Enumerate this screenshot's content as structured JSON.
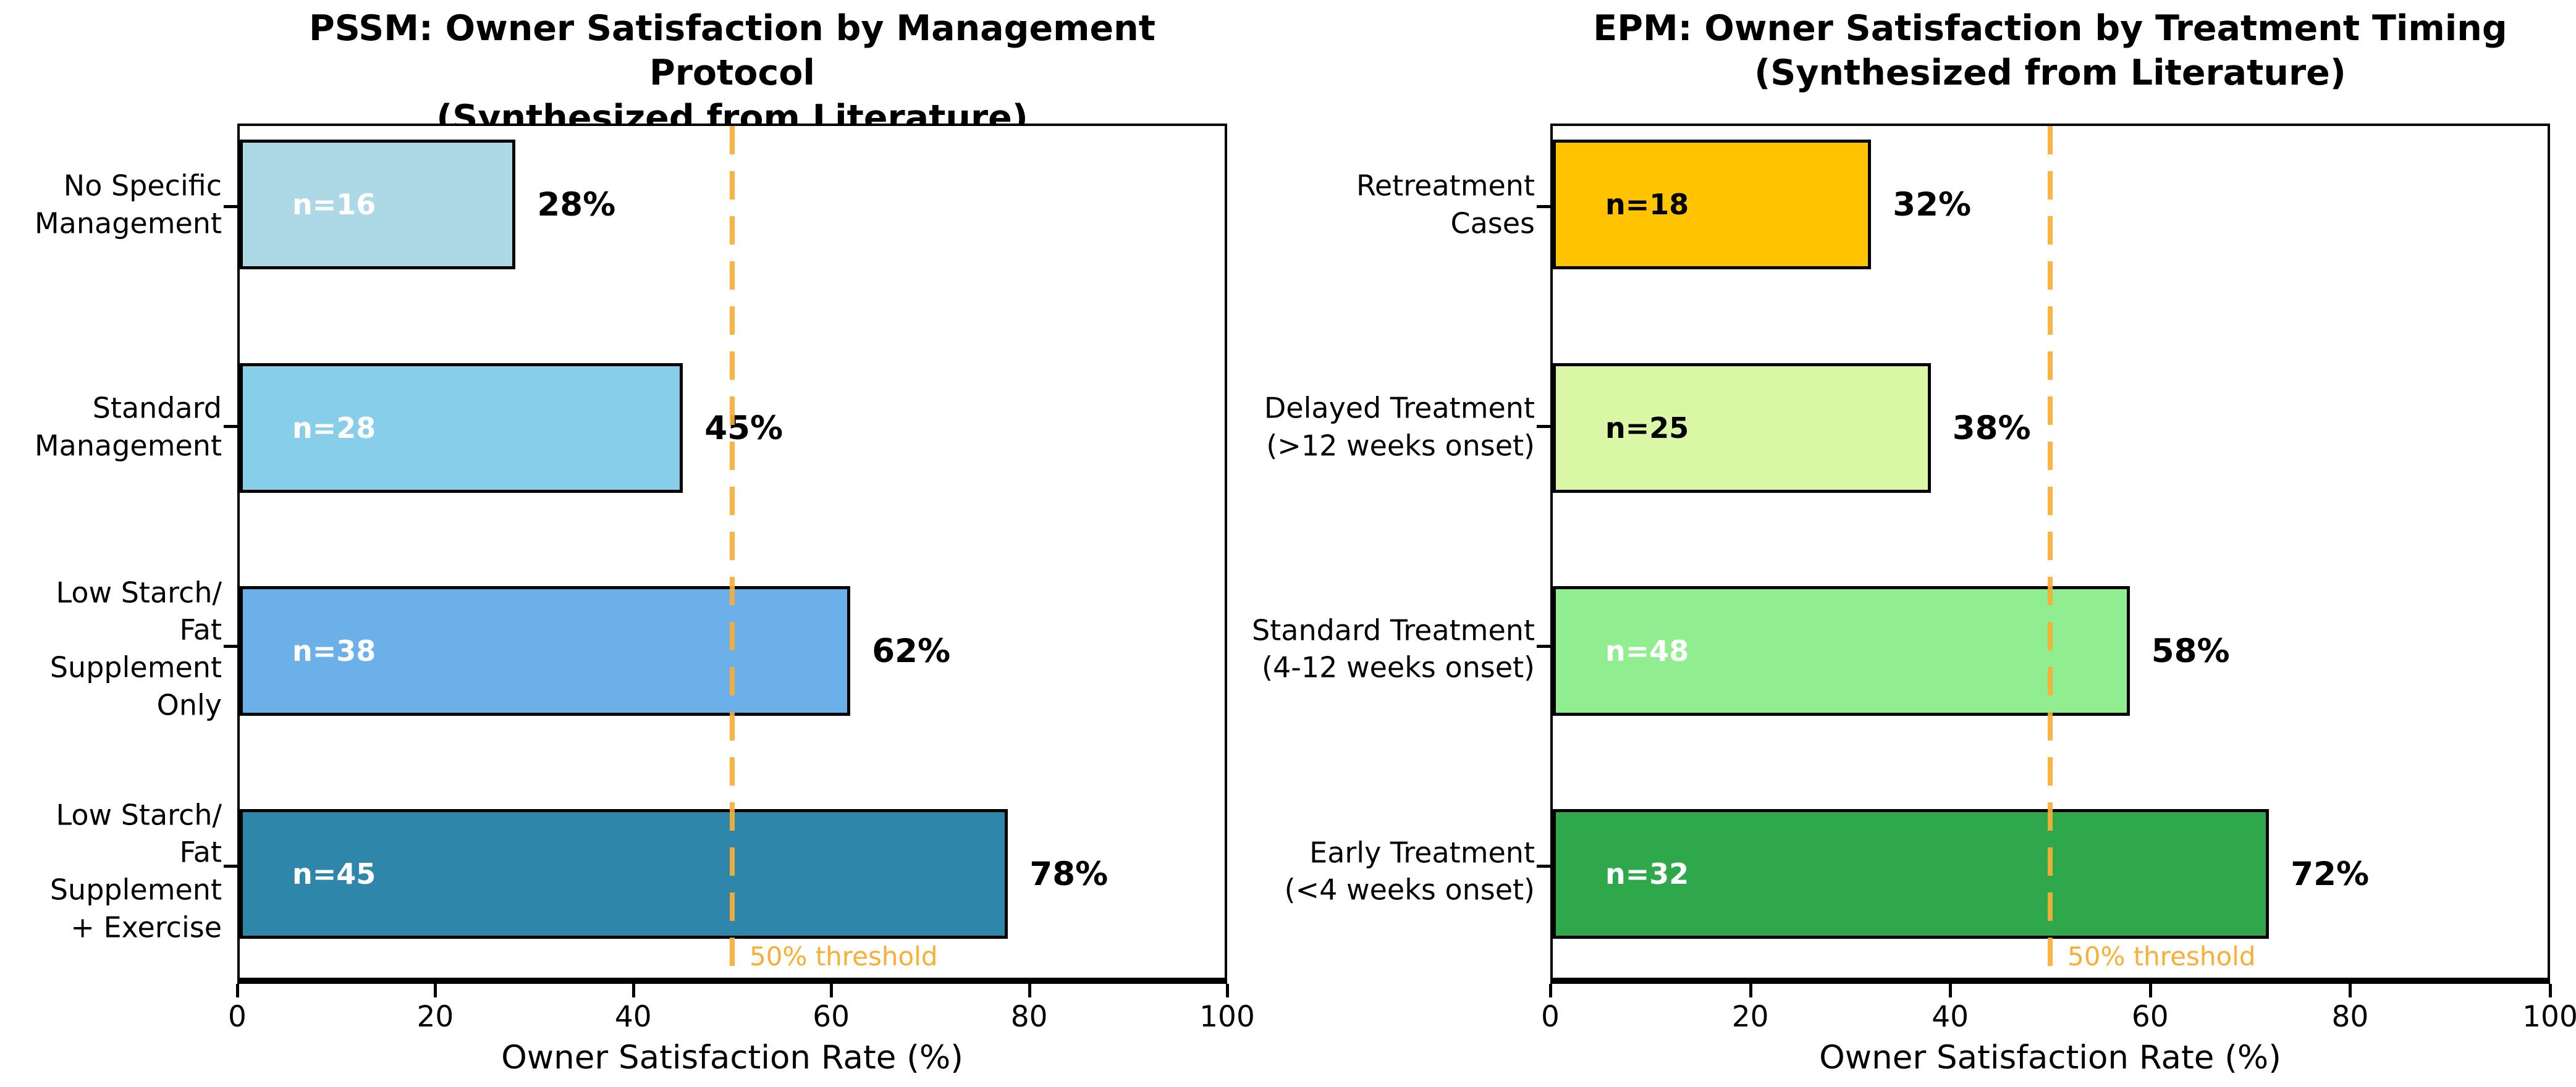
{
  "figure": {
    "background": "#ffffff",
    "xlabel": "Owner Satisfaction Rate (%)",
    "x_tick_labels": [
      "0",
      "20",
      "40",
      "60",
      "80",
      "100"
    ],
    "threshold_value": 50,
    "threshold_color": "#F9AE35",
    "threshold_label": "50% threshold",
    "charts": [
      {
        "title_line1": "PSSM: Owner Satisfaction by Management Protocol",
        "title_line2": "(Synthesized from Literature)",
        "bars": [
          {
            "category": "No Specific\nManagement",
            "value": 28,
            "pct_label": "28%",
            "n_label": "n=16",
            "color": "#ADD8E6",
            "n_text_color": "#ffffff"
          },
          {
            "category": "Standard\nManagement",
            "value": 45,
            "pct_label": "45%",
            "n_label": "n=28",
            "color": "#87CEEB",
            "n_text_color": "#ffffff"
          },
          {
            "category": "Low Starch/\nFat Supplement\nOnly",
            "value": 62,
            "pct_label": "62%",
            "n_label": "n=38",
            "color": "#6BB0E8",
            "n_text_color": "#ffffff"
          },
          {
            "category": "Low Starch/\nFat Supplement\n+ Exercise",
            "value": 78,
            "pct_label": "78%",
            "n_label": "n=45",
            "color": "#2E86AB",
            "n_text_color": "#ffffff"
          }
        ]
      },
      {
        "title_line1": "EPM: Owner Satisfaction by Treatment Timing",
        "title_line2": "(Synthesized from Literature)",
        "bars": [
          {
            "category": "Retreatment\nCases",
            "value": 32,
            "pct_label": "32%",
            "n_label": "n=18",
            "color": "#FFC300",
            "n_text_color": "#000000"
          },
          {
            "category": "Delayed Treatment\n(>12 weeks onset)",
            "value": 38,
            "pct_label": "38%",
            "n_label": "n=25",
            "color": "#DAF7A6",
            "n_text_color": "#000000"
          },
          {
            "category": "Standard Treatment\n(4-12 weeks onset)",
            "value": 58,
            "pct_label": "58%",
            "n_label": "n=48",
            "color": "#90EE90",
            "n_text_color": "#ffffff"
          },
          {
            "category": "Early Treatment\n(<4 weeks onset)",
            "value": 72,
            "pct_label": "72%",
            "n_label": "n=32",
            "color": "#2EA84B",
            "n_text_color": "#ffffff"
          }
        ]
      }
    ]
  },
  "chart_data": [
    {
      "type": "bar",
      "orientation": "horizontal",
      "title": "PSSM: Owner Satisfaction by Management Protocol (Synthesized from Literature)",
      "categories_top_to_bottom": [
        "No Specific Management",
        "Standard Management",
        "Low Starch/Fat Supplement Only",
        "Low Starch/Fat Supplement + Exercise"
      ],
      "values_pct": [
        28,
        45,
        62,
        78
      ],
      "sample_sizes": [
        16,
        28,
        38,
        45
      ],
      "bar_colors": [
        "#ADD8E6",
        "#87CEEB",
        "#6BB0E8",
        "#2E86AB"
      ],
      "xlabel": "Owner Satisfaction Rate (%)",
      "xlim": [
        0,
        100
      ],
      "x_ticks": [
        0,
        20,
        40,
        60,
        80,
        100
      ],
      "threshold_line": {
        "x": 50,
        "style": "dashed",
        "color": "#F9AE35",
        "label": "50% threshold"
      },
      "grid": false,
      "legend": false
    },
    {
      "type": "bar",
      "orientation": "horizontal",
      "title": "EPM: Owner Satisfaction by Treatment Timing (Synthesized from Literature)",
      "categories_top_to_bottom": [
        "Retreatment Cases",
        "Delayed Treatment (>12 weeks onset)",
        "Standard Treatment (4-12 weeks onset)",
        "Early Treatment (<4 weeks onset)"
      ],
      "values_pct": [
        32,
        38,
        58,
        72
      ],
      "sample_sizes": [
        18,
        25,
        48,
        32
      ],
      "bar_colors": [
        "#FFC300",
        "#DAF7A6",
        "#90EE90",
        "#2EA84B"
      ],
      "xlabel": "Owner Satisfaction Rate (%)",
      "xlim": [
        0,
        100
      ],
      "x_ticks": [
        0,
        20,
        40,
        60,
        80,
        100
      ],
      "threshold_line": {
        "x": 50,
        "style": "dashed",
        "color": "#F9AE35",
        "label": "50% threshold"
      },
      "grid": false,
      "legend": false
    }
  ]
}
